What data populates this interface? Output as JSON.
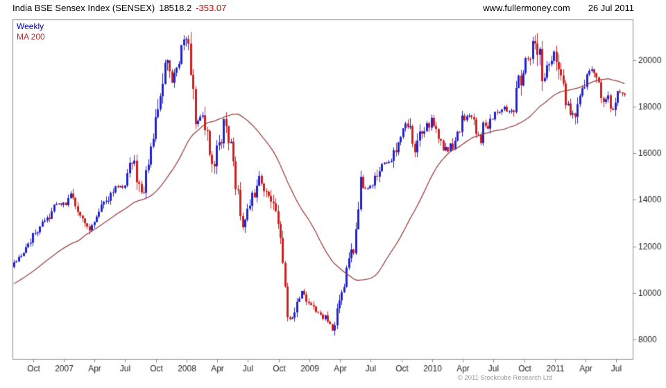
{
  "header": {
    "title": "India BSE Sensex Index (SENSEX)",
    "last_price": "18518.2",
    "change": "-353.07",
    "website": "www.fullermoney.com",
    "date": "26 Jul 2011"
  },
  "legend": {
    "series_label": "Weekly",
    "ma_label": "MA 200"
  },
  "footer": {
    "copyright": "© 2011 Stockcube Research Ltd"
  },
  "colors": {
    "up": "#2222cc",
    "down": "#cc2020",
    "ma": "#994040",
    "frame": "#888888",
    "axis_text": "#222222",
    "change": "#cc0000",
    "legend_weekly": "#0000bb",
    "legend_ma": "#aa3333",
    "copyright": "#999999"
  },
  "chart_data": {
    "type": "candlestick",
    "title": "India BSE Sensex Index (SENSEX)",
    "interval": "Weekly",
    "overlay": {
      "label": "MA 200",
      "period_weeks": 40
    },
    "grid": false,
    "legend_position": "top-left",
    "last_close": 18518.2,
    "change": -353.07,
    "ylim": [
      7166,
      21756
    ],
    "y_axis": {
      "side": "right",
      "ticks": [
        8000,
        10000,
        12000,
        14000,
        16000,
        18000,
        20000
      ]
    },
    "x_axis": {
      "start": "Aug 2006",
      "end": "Aug 2011",
      "unit": "months_since_aug_2006",
      "ticks": [
        {
          "t": 2,
          "label": "Oct"
        },
        {
          "t": 5,
          "label": "2007"
        },
        {
          "t": 8,
          "label": "Apr"
        },
        {
          "t": 11,
          "label": "Jul"
        },
        {
          "t": 14,
          "label": "Oct"
        },
        {
          "t": 17,
          "label": "2008"
        },
        {
          "t": 20,
          "label": "Apr"
        },
        {
          "t": 23,
          "label": "Jul"
        },
        {
          "t": 26,
          "label": "Oct"
        },
        {
          "t": 29,
          "label": "2009"
        },
        {
          "t": 32,
          "label": "Apr"
        },
        {
          "t": 35,
          "label": "Jul"
        },
        {
          "t": 38,
          "label": "Oct"
        },
        {
          "t": 41,
          "label": "2010"
        },
        {
          "t": 44,
          "label": "Apr"
        },
        {
          "t": 47,
          "label": "Jul"
        },
        {
          "t": 50,
          "label": "Oct"
        },
        {
          "t": 53,
          "label": "2011"
        },
        {
          "t": 56,
          "label": "Apr"
        },
        {
          "t": 59,
          "label": "Jul"
        }
      ]
    },
    "control_points": [
      [
        -10,
        8600
      ],
      [
        -6,
        9900
      ],
      [
        -3,
        12300
      ],
      [
        -2.2,
        9400
      ],
      [
        -1,
        10800
      ],
      [
        0,
        11200
      ],
      [
        1,
        11650
      ],
      [
        2,
        12450
      ],
      [
        3,
        12960
      ],
      [
        4,
        13700
      ],
      [
        5,
        13790
      ],
      [
        5.8,
        14230
      ],
      [
        7.2,
        12680
      ],
      [
        9,
        13870
      ],
      [
        10,
        14540
      ],
      [
        11,
        14650
      ],
      [
        11.8,
        15790
      ],
      [
        12.6,
        14120
      ],
      [
        14,
        17290
      ],
      [
        15,
        19840
      ],
      [
        15.6,
        18900
      ],
      [
        16.5,
        20400
      ],
      [
        17.1,
        21100
      ],
      [
        17.9,
        17450
      ],
      [
        18.6,
        17800
      ],
      [
        19.6,
        15300
      ],
      [
        20.8,
        17480
      ],
      [
        22.5,
        13000
      ],
      [
        24.2,
        15000
      ],
      [
        25,
        14200
      ],
      [
        26,
        12860
      ],
      [
        26.9,
        8900
      ],
      [
        27.5,
        9100
      ],
      [
        28.2,
        10100
      ],
      [
        29.5,
        9200
      ],
      [
        30.5,
        8900
      ],
      [
        31.3,
        8300
      ],
      [
        32,
        9700
      ],
      [
        32.9,
        11400
      ],
      [
        33.4,
        12150
      ],
      [
        33.8,
        13900
      ],
      [
        34,
        14630
      ],
      [
        35,
        14490
      ],
      [
        36,
        15670
      ],
      [
        37,
        15670
      ],
      [
        38,
        17130
      ],
      [
        38.6,
        17300
      ],
      [
        39.2,
        15900
      ],
      [
        40,
        16930
      ],
      [
        41,
        17460
      ],
      [
        42,
        16360
      ],
      [
        42.6,
        15950
      ],
      [
        43,
        16430
      ],
      [
        44,
        17530
      ],
      [
        45,
        17560
      ],
      [
        45.8,
        16300
      ],
      [
        46,
        16945
      ],
      [
        47,
        17700
      ],
      [
        48,
        17870
      ],
      [
        49,
        17970
      ],
      [
        50,
        20070
      ],
      [
        50.5,
        20250
      ],
      [
        51.15,
        21000
      ],
      [
        51.9,
        19100
      ],
      [
        52.6,
        20200
      ],
      [
        53,
        20510
      ],
      [
        53.6,
        19100
      ],
      [
        54,
        18330
      ],
      [
        54.8,
        17500
      ],
      [
        55,
        17820
      ],
      [
        56,
        19450
      ],
      [
        56.4,
        19600
      ],
      [
        57,
        19140
      ],
      [
        57.9,
        18200
      ],
      [
        58.3,
        18400
      ],
      [
        58.7,
        17700
      ],
      [
        59,
        18845
      ],
      [
        59.4,
        18650
      ],
      [
        59.8,
        18518.2
      ]
    ]
  }
}
